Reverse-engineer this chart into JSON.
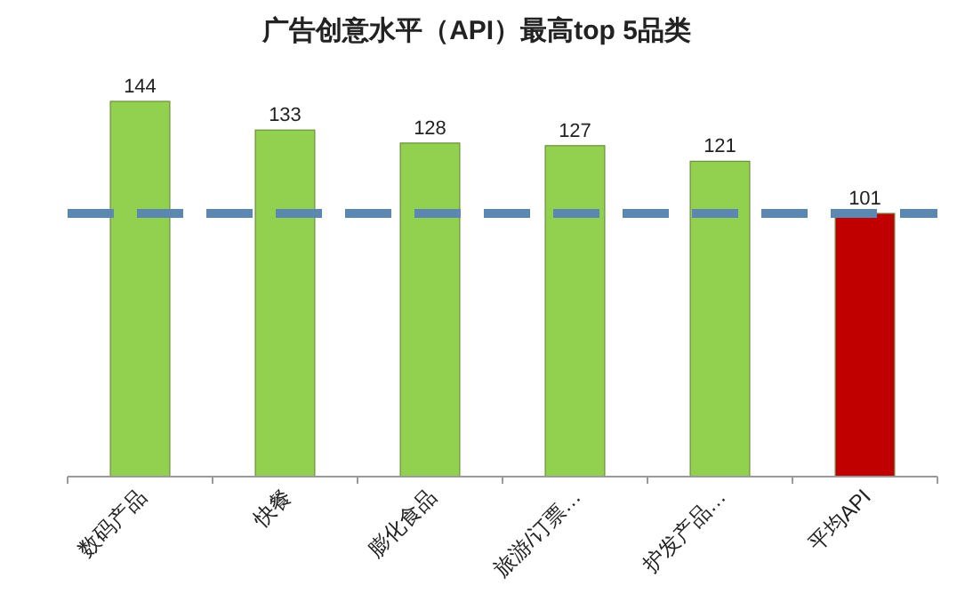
{
  "chart_data": {
    "type": "bar",
    "title": "广告创意水平（API）最高top 5品类",
    "categories": [
      "数码产品",
      "快餐",
      "膨化食品",
      "旅游/订票…",
      "护发产品…",
      "平均API"
    ],
    "values": [
      144,
      133,
      128,
      127,
      121,
      101
    ],
    "colors": [
      "#92d050",
      "#92d050",
      "#92d050",
      "#92d050",
      "#92d050",
      "#c00000"
    ],
    "data_labels": true,
    "ref_lines": [
      {
        "axis": "y",
        "value": 101,
        "color": "#5b87b0",
        "line_style": "dashed"
      }
    ]
  }
}
